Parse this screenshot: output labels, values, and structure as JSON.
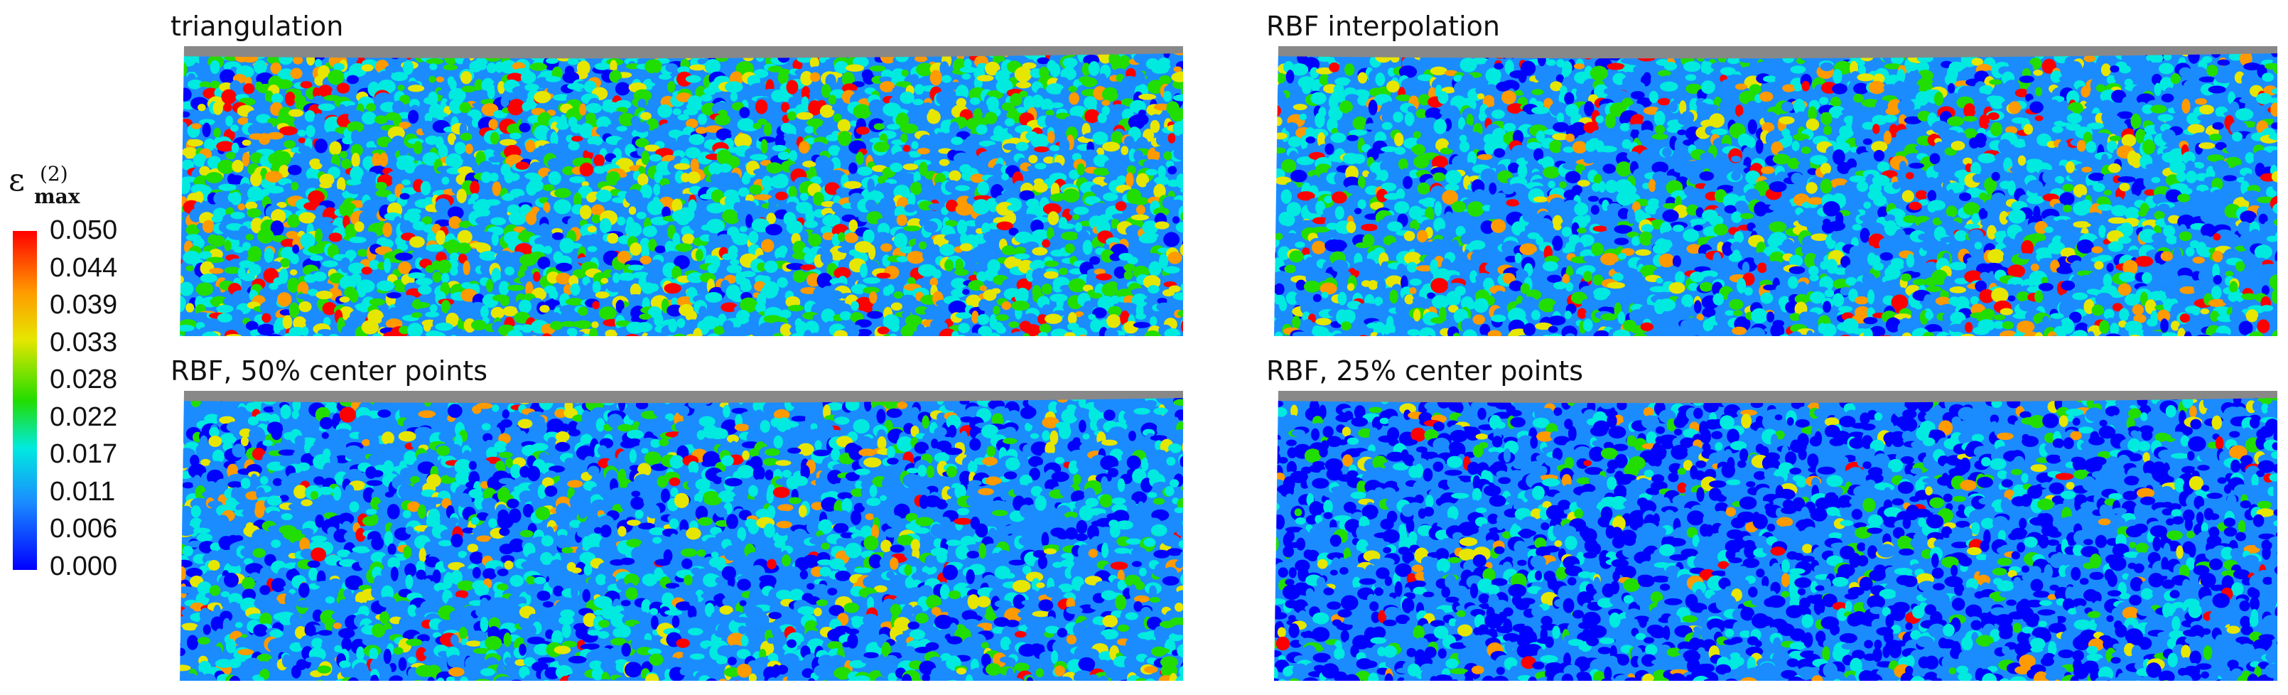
{
  "panels": [
    {
      "title": "triangulation",
      "tone": "warm"
    },
    {
      "title": "RBF interpolation",
      "tone": "mixed"
    },
    {
      "title": "RBF, 50% center points",
      "tone": "cool"
    },
    {
      "title": "RBF, 25% center points",
      "tone": "cold"
    }
  ],
  "colorbar": {
    "symbol": "ε",
    "superscript": "(2)",
    "subscript": "max",
    "ticks": [
      "0.050",
      "0.044",
      "0.039",
      "0.033",
      "0.028",
      "0.022",
      "0.017",
      "0.011",
      "0.006",
      "0.000"
    ],
    "colors": [
      "#0000ff",
      "#1a8cff",
      "#00eadf",
      "#22dd00",
      "#e6e600",
      "#ff9a00",
      "#ff0000"
    ]
  },
  "colors": {
    "background": "#ffffff",
    "mask": "#888888"
  }
}
